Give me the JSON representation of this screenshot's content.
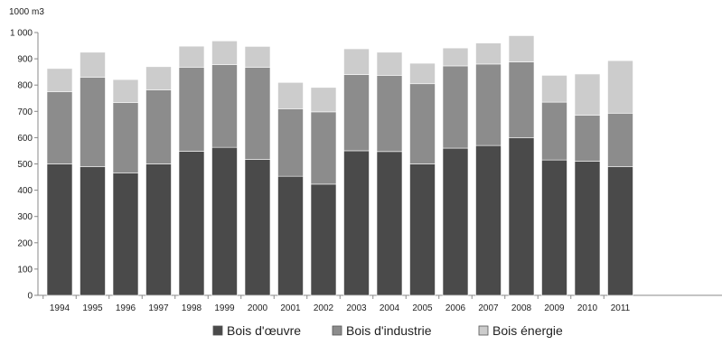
{
  "chart_data": {
    "type": "bar",
    "stacked": true,
    "unit_label": "1000 m3",
    "categories": [
      "1994",
      "1995",
      "1996",
      "1997",
      "1998",
      "1999",
      "2000",
      "2001",
      "2002",
      "2003",
      "2004",
      "2005",
      "2006",
      "2007",
      "2008",
      "2009",
      "2010",
      "2011"
    ],
    "series": [
      {
        "name": "Bois d'œuvre",
        "color": "#4a4a4a",
        "values": [
          500,
          490,
          465,
          500,
          548,
          563,
          517,
          453,
          423,
          550,
          547,
          500,
          560,
          570,
          600,
          515,
          510,
          490
        ]
      },
      {
        "name": "Bois d'industrie",
        "color": "#8c8c8c",
        "values": [
          275,
          340,
          268,
          282,
          320,
          315,
          350,
          257,
          275,
          290,
          290,
          305,
          313,
          310,
          288,
          220,
          175,
          203
        ]
      },
      {
        "name": "Bois énergie",
        "color": "#cccccc",
        "values": [
          88,
          95,
          88,
          88,
          80,
          90,
          80,
          100,
          93,
          98,
          88,
          78,
          68,
          80,
          100,
          102,
          157,
          200
        ]
      }
    ],
    "ylim": [
      0,
      1000
    ],
    "yticks": [
      0,
      100,
      200,
      300,
      400,
      500,
      600,
      700,
      800,
      900,
      1000
    ],
    "ytick_labels": [
      "0",
      "100",
      "200",
      "300",
      "400",
      "500",
      "600",
      "700",
      "800",
      "900",
      "1 000"
    ],
    "grid": false,
    "legend_position": "bottom"
  }
}
